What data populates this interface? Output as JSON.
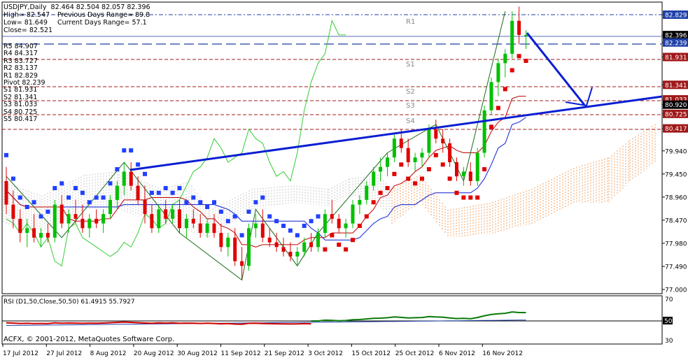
{
  "header": {
    "symbol": "USDJPY,Daily",
    "ohlc": "82.464 82.504 82.057 82.396",
    "high": "High= 82.547",
    "prev_range": "Previous Days Range= 89.8",
    "low": "Low= 81.649",
    "curr_range": "Current Days Range= 57.1",
    "close": "Close= 82.521"
  },
  "pivot_levels": [
    "R5 84.907",
    "R4 84.317",
    "R3 83.727",
    "R2 83.137",
    "R1 82.829",
    "Pivot 82.239",
    "S1 81.931",
    "S2 81.341",
    "S3 81.033",
    "S4 80.725",
    "S5 80.417"
  ],
  "level_labels": [
    "R1",
    "S1",
    "S2",
    "S3",
    "S4"
  ],
  "price_axis": {
    "ticks": [
      "82.829",
      "82.396",
      "82.239",
      "81.931",
      "81.341",
      "81.033",
      "80.920",
      "80.725",
      "80.417",
      "79.940",
      "79.450",
      "78.960",
      "78.470",
      "77.980",
      "77.490",
      "77.000"
    ],
    "highlight_colors": {
      "82.829": "#1f3fa8",
      "82.239": "#1f3fa8",
      "81.931": "#a01818",
      "81.341": "#a01818",
      "81.033": "#a01818",
      "80.725": "#a01818",
      "80.417": "#a01818",
      "82.396": "#000000",
      "80.920": "#000000"
    }
  },
  "date_axis": [
    "17 Jul 2012",
    "27 Jul 2012",
    "8 Aug 2012",
    "20 Aug 2012",
    "30 Aug 2012",
    "11 Sep 2012",
    "21 Sep 2012",
    "3 Oct 2012",
    "15 Oct 2012",
    "25 Oct 2012",
    "6 Nov 2012",
    "16 Nov 2012"
  ],
  "rsi": {
    "label": "RSI (D1,50,Close,50,50) 61.4915 55.7927",
    "ticks": [
      "70",
      "50",
      "30"
    ]
  },
  "copyright": "ACFX, © 2001-2012, MetaQuotes Software Corp.",
  "colors": {
    "bull": "#00c000",
    "bear": "#e00000",
    "trend": "#0a1ed2",
    "kijun": "#0a1ed2",
    "tenkan": "#c00000",
    "chikou": "#33cc33",
    "cloud_a": "#c8c8c8",
    "cloud_b": "#f0a060",
    "blue_dots": "#2040ff",
    "red_dots": "#e00000"
  },
  "chart_data": {
    "type": "candlestick",
    "ylim": [
      77.0,
      83.3
    ],
    "candles_ohlc": [
      [
        79.3,
        79.6,
        78.6,
        78.8
      ],
      [
        78.8,
        79.1,
        78.3,
        78.5
      ],
      [
        78.5,
        78.7,
        78.0,
        78.2
      ],
      [
        78.2,
        78.5,
        77.9,
        78.3
      ],
      [
        78.3,
        78.6,
        78.0,
        78.1
      ],
      [
        78.1,
        78.3,
        77.9,
        78.2
      ],
      [
        78.2,
        78.4,
        78.0,
        78.1
      ],
      [
        78.1,
        78.9,
        78.0,
        78.8
      ],
      [
        78.8,
        79.0,
        78.3,
        78.4
      ],
      [
        78.4,
        78.7,
        78.2,
        78.6
      ],
      [
        78.6,
        78.9,
        78.4,
        78.5
      ],
      [
        78.5,
        78.8,
        78.2,
        78.3
      ],
      [
        78.3,
        78.6,
        78.1,
        78.5
      ],
      [
        78.5,
        78.7,
        78.3,
        78.4
      ],
      [
        78.4,
        78.7,
        78.2,
        78.6
      ],
      [
        78.6,
        79.0,
        78.5,
        78.9
      ],
      [
        78.9,
        79.3,
        78.7,
        79.2
      ],
      [
        79.2,
        79.7,
        79.0,
        79.5
      ],
      [
        79.5,
        79.7,
        79.1,
        79.2
      ],
      [
        79.2,
        79.4,
        78.8,
        78.9
      ],
      [
        78.9,
        79.2,
        78.4,
        78.6
      ],
      [
        78.6,
        78.8,
        78.2,
        78.3
      ],
      [
        78.3,
        78.8,
        78.2,
        78.7
      ],
      [
        78.7,
        78.9,
        78.4,
        78.5
      ],
      [
        78.5,
        78.8,
        78.4,
        78.7
      ],
      [
        78.7,
        78.9,
        78.2,
        78.3
      ],
      [
        78.3,
        78.6,
        78.1,
        78.5
      ],
      [
        78.5,
        78.7,
        78.3,
        78.4
      ],
      [
        78.4,
        78.6,
        78.1,
        78.2
      ],
      [
        78.2,
        78.5,
        78.1,
        78.4
      ],
      [
        78.4,
        78.6,
        78.1,
        78.2
      ],
      [
        78.2,
        78.4,
        77.8,
        77.9
      ],
      [
        77.9,
        78.2,
        77.7,
        78.1
      ],
      [
        78.1,
        78.3,
        77.5,
        77.6
      ],
      [
        77.6,
        77.9,
        77.2,
        77.5
      ],
      [
        77.5,
        78.4,
        77.4,
        78.3
      ],
      [
        78.3,
        78.6,
        78.1,
        78.4
      ],
      [
        78.4,
        78.7,
        78.0,
        78.1
      ],
      [
        78.1,
        78.3,
        77.9,
        78.0
      ],
      [
        78.0,
        78.2,
        77.8,
        77.9
      ],
      [
        77.9,
        78.1,
        77.7,
        77.8
      ],
      [
        77.8,
        78.0,
        77.6,
        77.7
      ],
      [
        77.7,
        77.9,
        77.5,
        77.8
      ],
      [
        77.8,
        78.1,
        77.7,
        78.0
      ],
      [
        78.0,
        78.2,
        77.8,
        77.9
      ],
      [
        77.9,
        78.3,
        77.8,
        78.2
      ],
      [
        78.2,
        78.7,
        78.1,
        78.6
      ],
      [
        78.6,
        78.9,
        78.4,
        78.5
      ],
      [
        78.5,
        78.6,
        78.2,
        78.3
      ],
      [
        78.3,
        78.5,
        78.1,
        78.4
      ],
      [
        78.4,
        78.9,
        78.3,
        78.8
      ],
      [
        78.8,
        79.0,
        78.6,
        78.9
      ],
      [
        78.9,
        79.3,
        78.8,
        79.2
      ],
      [
        79.2,
        79.6,
        79.1,
        79.5
      ],
      [
        79.5,
        79.8,
        79.3,
        79.6
      ],
      [
        79.6,
        79.9,
        79.4,
        79.8
      ],
      [
        79.8,
        80.3,
        79.7,
        80.2
      ],
      [
        80.2,
        80.4,
        79.9,
        80.0
      ],
      [
        80.0,
        80.2,
        79.6,
        79.7
      ],
      [
        79.7,
        79.9,
        79.5,
        79.8
      ],
      [
        79.8,
        80.0,
        79.6,
        79.9
      ],
      [
        79.9,
        80.5,
        79.8,
        80.4
      ],
      [
        80.4,
        80.6,
        80.1,
        80.2
      ],
      [
        80.2,
        80.4,
        79.9,
        80.1
      ],
      [
        80.1,
        80.2,
        79.6,
        79.7
      ],
      [
        79.7,
        79.8,
        79.3,
        79.4
      ],
      [
        79.4,
        79.6,
        79.2,
        79.5
      ],
      [
        79.5,
        79.7,
        79.2,
        79.3
      ],
      [
        79.3,
        80.0,
        79.2,
        79.9
      ],
      [
        79.9,
        80.9,
        79.8,
        80.8
      ],
      [
        80.8,
        81.5,
        80.7,
        81.4
      ],
      [
        81.4,
        81.9,
        81.1,
        81.8
      ],
      [
        81.8,
        82.1,
        81.5,
        82.0
      ],
      [
        82.0,
        82.9,
        81.9,
        82.7
      ],
      [
        82.7,
        83.0,
        82.2,
        82.4
      ],
      [
        82.4,
        82.5,
        82.1,
        82.4
      ]
    ]
  }
}
